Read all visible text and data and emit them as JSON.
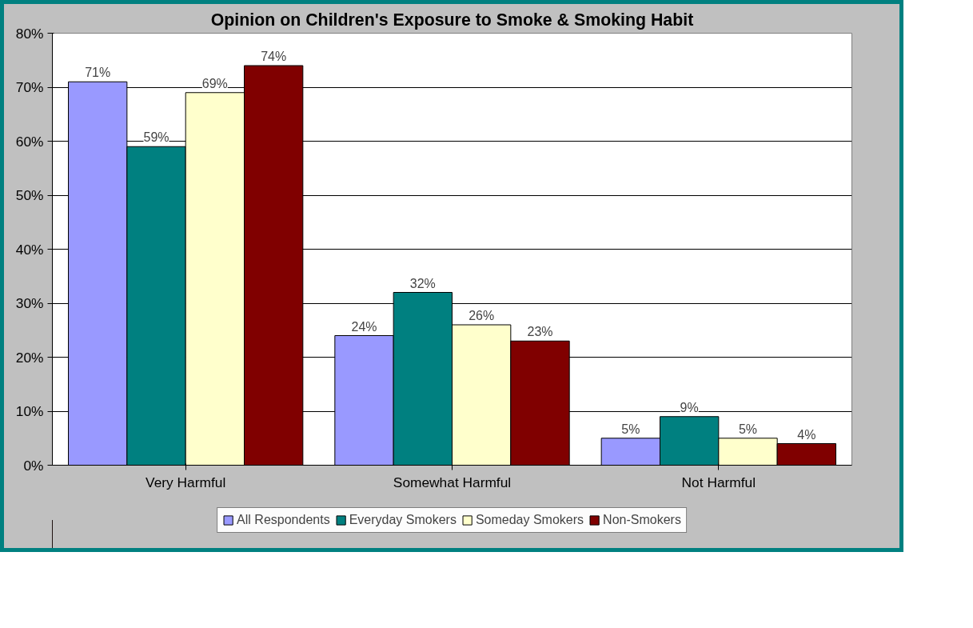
{
  "chart_data": {
    "type": "bar",
    "title": "Opinion on Children's Exposure to Smoke & Smoking Habit",
    "categories": [
      "Very Harmful",
      "Somewhat Harmful",
      "Not Harmful"
    ],
    "series": [
      {
        "name": "All Respondents",
        "color": "#9999ff",
        "values": [
          71,
          24,
          5
        ],
        "value_labels": [
          "71%",
          "24%",
          "5%"
        ]
      },
      {
        "name": "Everyday Smokers",
        "color": "#008080",
        "values": [
          59,
          32,
          9
        ],
        "value_labels": [
          "59%",
          "32%",
          "9%"
        ]
      },
      {
        "name": "Someday Smokers",
        "color": "#ffffcc",
        "values": [
          69,
          26,
          5
        ],
        "value_labels": [
          "69%",
          "26%",
          "5%"
        ]
      },
      {
        "name": "Non-Smokers",
        "color": "#800000",
        "values": [
          74,
          23,
          4
        ],
        "value_labels": [
          "74%",
          "23%",
          "4%"
        ]
      }
    ],
    "ylim": [
      0,
      80
    ],
    "yticks": [
      {
        "value": 0,
        "label": "0%"
      },
      {
        "value": 10,
        "label": "10%"
      },
      {
        "value": 20,
        "label": "20%"
      },
      {
        "value": 30,
        "label": "30%"
      },
      {
        "value": 40,
        "label": "40%"
      },
      {
        "value": 50,
        "label": "50%"
      },
      {
        "value": 60,
        "label": "60%"
      },
      {
        "value": 70,
        "label": "70%"
      },
      {
        "value": 80,
        "label": "80%"
      }
    ],
    "grid": "y",
    "legend": "bottom"
  }
}
